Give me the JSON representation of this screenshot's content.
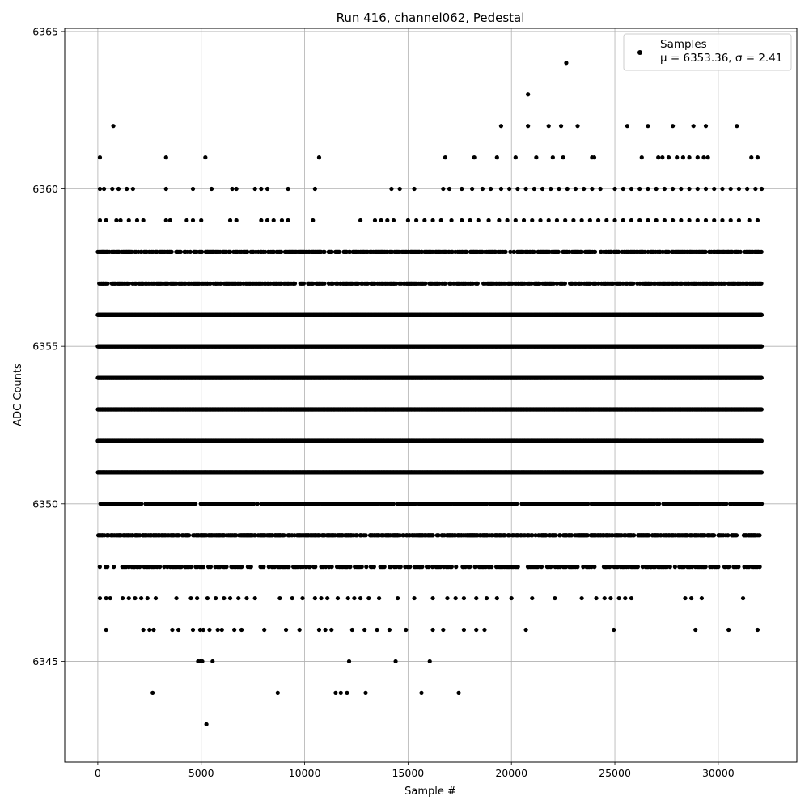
{
  "chart_data": {
    "type": "scatter",
    "title": "Run 416, channel062, Pedestal",
    "xlabel": "Sample #",
    "ylabel": "ADC Counts",
    "xlim": [
      -1600,
      33800
    ],
    "ylim": [
      6341.8,
      6365.1
    ],
    "xticks": [
      0,
      5000,
      10000,
      15000,
      20000,
      25000,
      30000
    ],
    "xtick_labels": [
      "0",
      "5000",
      "10000",
      "15000",
      "20000",
      "25000",
      "30000"
    ],
    "yticks": [
      6345,
      6350,
      6355,
      6360,
      6365
    ],
    "ytick_labels": [
      "6345",
      "6350",
      "6355",
      "6360",
      "6365"
    ],
    "grid": true,
    "legend_position": "top-right",
    "series": [
      {
        "name": "Samples",
        "legend_stats": "μ = 6353.36, σ = 2.41",
        "color": "#000000",
        "marker": "circle",
        "levels": [
          {
            "y": 6348,
            "x": [
              0,
              32100
            ],
            "density": "medium"
          },
          {
            "y": 6349,
            "x": [
              0,
              32100
            ],
            "density": "high"
          },
          {
            "y": 6350,
            "x": [
              100,
              32100
            ],
            "density": "high"
          },
          {
            "y": 6351,
            "x": [
              0,
              32100
            ],
            "density": "dense"
          },
          {
            "y": 6352,
            "x": [
              0,
              32100
            ],
            "density": "dense"
          },
          {
            "y": 6353,
            "x": [
              0,
              32100
            ],
            "density": "dense"
          },
          {
            "y": 6354,
            "x": [
              0,
              32100
            ],
            "density": "dense"
          },
          {
            "y": 6355,
            "x": [
              0,
              32100
            ],
            "density": "dense"
          },
          {
            "y": 6356,
            "x": [
              0,
              32100
            ],
            "density": "dense"
          },
          {
            "y": 6357,
            "x": [
              0,
              32100
            ],
            "density": "high"
          },
          {
            "y": 6358,
            "x": [
              0,
              32100
            ],
            "density": "high"
          }
        ],
        "points": [
          [
            2650,
            6344
          ],
          [
            8700,
            6344
          ],
          [
            11500,
            6344
          ],
          [
            11750,
            6344
          ],
          [
            12050,
            6344
          ],
          [
            12950,
            6344
          ],
          [
            15650,
            6344
          ],
          [
            17450,
            6344
          ],
          [
            5250,
            6343
          ],
          [
            4850,
            6345
          ],
          [
            4950,
            6345
          ],
          [
            5050,
            6345
          ],
          [
            5550,
            6345
          ],
          [
            12150,
            6345
          ],
          [
            14400,
            6345
          ],
          [
            16050,
            6345
          ],
          [
            400,
            6346
          ],
          [
            2200,
            6346
          ],
          [
            2500,
            6346
          ],
          [
            2700,
            6346
          ],
          [
            3600,
            6346
          ],
          [
            3900,
            6346
          ],
          [
            4600,
            6346
          ],
          [
            4950,
            6346
          ],
          [
            5100,
            6346
          ],
          [
            5400,
            6346
          ],
          [
            5800,
            6346
          ],
          [
            6000,
            6346
          ],
          [
            6600,
            6346
          ],
          [
            6950,
            6346
          ],
          [
            8050,
            6346
          ],
          [
            9100,
            6346
          ],
          [
            9750,
            6346
          ],
          [
            10700,
            6346
          ],
          [
            11000,
            6346
          ],
          [
            11300,
            6346
          ],
          [
            12300,
            6346
          ],
          [
            12900,
            6346
          ],
          [
            13500,
            6346
          ],
          [
            14100,
            6346
          ],
          [
            14900,
            6346
          ],
          [
            16200,
            6346
          ],
          [
            16700,
            6346
          ],
          [
            17700,
            6346
          ],
          [
            18300,
            6346
          ],
          [
            18700,
            6346
          ],
          [
            20700,
            6346
          ],
          [
            24950,
            6346
          ],
          [
            28900,
            6346
          ],
          [
            30500,
            6346
          ],
          [
            31900,
            6346
          ],
          [
            100,
            6347
          ],
          [
            400,
            6347
          ],
          [
            600,
            6347
          ],
          [
            1200,
            6347
          ],
          [
            1500,
            6347
          ],
          [
            1800,
            6347
          ],
          [
            2100,
            6347
          ],
          [
            2400,
            6347
          ],
          [
            2800,
            6347
          ],
          [
            3800,
            6347
          ],
          [
            4500,
            6347
          ],
          [
            4800,
            6347
          ],
          [
            5300,
            6347
          ],
          [
            5700,
            6347
          ],
          [
            6100,
            6347
          ],
          [
            6400,
            6347
          ],
          [
            6800,
            6347
          ],
          [
            7200,
            6347
          ],
          [
            7600,
            6347
          ],
          [
            8800,
            6347
          ],
          [
            9400,
            6347
          ],
          [
            9900,
            6347
          ],
          [
            10500,
            6347
          ],
          [
            10800,
            6347
          ],
          [
            11100,
            6347
          ],
          [
            11600,
            6347
          ],
          [
            12100,
            6347
          ],
          [
            12400,
            6347
          ],
          [
            12700,
            6347
          ],
          [
            13100,
            6347
          ],
          [
            13600,
            6347
          ],
          [
            14500,
            6347
          ],
          [
            15300,
            6347
          ],
          [
            16200,
            6347
          ],
          [
            16900,
            6347
          ],
          [
            17300,
            6347
          ],
          [
            17700,
            6347
          ],
          [
            18300,
            6347
          ],
          [
            18800,
            6347
          ],
          [
            19300,
            6347
          ],
          [
            20000,
            6347
          ],
          [
            21000,
            6347
          ],
          [
            22100,
            6347
          ],
          [
            23400,
            6347
          ],
          [
            24100,
            6347
          ],
          [
            24500,
            6347
          ],
          [
            24800,
            6347
          ],
          [
            25200,
            6347
          ],
          [
            25500,
            6347
          ],
          [
            25800,
            6347
          ],
          [
            28400,
            6347
          ],
          [
            28700,
            6347
          ],
          [
            29200,
            6347
          ],
          [
            31200,
            6347
          ],
          [
            100,
            6359
          ],
          [
            400,
            6359
          ],
          [
            900,
            6359
          ],
          [
            1100,
            6359
          ],
          [
            1500,
            6359
          ],
          [
            1900,
            6359
          ],
          [
            2200,
            6359
          ],
          [
            3300,
            6359
          ],
          [
            3500,
            6359
          ],
          [
            4300,
            6359
          ],
          [
            4600,
            6359
          ],
          [
            5000,
            6359
          ],
          [
            6400,
            6359
          ],
          [
            6700,
            6359
          ],
          [
            7900,
            6359
          ],
          [
            8200,
            6359
          ],
          [
            8500,
            6359
          ],
          [
            8900,
            6359
          ],
          [
            9200,
            6359
          ],
          [
            10400,
            6359
          ],
          [
            12700,
            6359
          ],
          [
            13400,
            6359
          ],
          [
            13700,
            6359
          ],
          [
            14000,
            6359
          ],
          [
            14300,
            6359
          ],
          [
            15000,
            6359
          ],
          [
            15400,
            6359
          ],
          [
            15800,
            6359
          ],
          [
            16200,
            6359
          ],
          [
            16600,
            6359
          ],
          [
            17100,
            6359
          ],
          [
            17600,
            6359
          ],
          [
            18000,
            6359
          ],
          [
            18400,
            6359
          ],
          [
            18900,
            6359
          ],
          [
            19400,
            6359
          ],
          [
            19800,
            6359
          ],
          [
            20200,
            6359
          ],
          [
            20600,
            6359
          ],
          [
            21000,
            6359
          ],
          [
            21400,
            6359
          ],
          [
            21800,
            6359
          ],
          [
            22200,
            6359
          ],
          [
            22600,
            6359
          ],
          [
            23000,
            6359
          ],
          [
            23400,
            6359
          ],
          [
            23800,
            6359
          ],
          [
            24200,
            6359
          ],
          [
            24600,
            6359
          ],
          [
            25000,
            6359
          ],
          [
            25400,
            6359
          ],
          [
            25800,
            6359
          ],
          [
            26200,
            6359
          ],
          [
            26600,
            6359
          ],
          [
            27000,
            6359
          ],
          [
            27400,
            6359
          ],
          [
            27800,
            6359
          ],
          [
            28200,
            6359
          ],
          [
            28600,
            6359
          ],
          [
            29000,
            6359
          ],
          [
            29400,
            6359
          ],
          [
            29800,
            6359
          ],
          [
            30200,
            6359
          ],
          [
            30600,
            6359
          ],
          [
            31000,
            6359
          ],
          [
            31500,
            6359
          ],
          [
            31900,
            6359
          ],
          [
            100,
            6360
          ],
          [
            300,
            6360
          ],
          [
            700,
            6360
          ],
          [
            1000,
            6360
          ],
          [
            1400,
            6360
          ],
          [
            1700,
            6360
          ],
          [
            3300,
            6360
          ],
          [
            4600,
            6360
          ],
          [
            5500,
            6360
          ],
          [
            6500,
            6360
          ],
          [
            6700,
            6360
          ],
          [
            7600,
            6360
          ],
          [
            7900,
            6360
          ],
          [
            8200,
            6360
          ],
          [
            9200,
            6360
          ],
          [
            10500,
            6360
          ],
          [
            14200,
            6360
          ],
          [
            14600,
            6360
          ],
          [
            15300,
            6360
          ],
          [
            16700,
            6360
          ],
          [
            17000,
            6360
          ],
          [
            17600,
            6360
          ],
          [
            18100,
            6360
          ],
          [
            18600,
            6360
          ],
          [
            19000,
            6360
          ],
          [
            19500,
            6360
          ],
          [
            19900,
            6360
          ],
          [
            20300,
            6360
          ],
          [
            20700,
            6360
          ],
          [
            21100,
            6360
          ],
          [
            21500,
            6360
          ],
          [
            21900,
            6360
          ],
          [
            22300,
            6360
          ],
          [
            22700,
            6360
          ],
          [
            23100,
            6360
          ],
          [
            23500,
            6360
          ],
          [
            23900,
            6360
          ],
          [
            24300,
            6360
          ],
          [
            25000,
            6360
          ],
          [
            25400,
            6360
          ],
          [
            25800,
            6360
          ],
          [
            26200,
            6360
          ],
          [
            26600,
            6360
          ],
          [
            27000,
            6360
          ],
          [
            27400,
            6360
          ],
          [
            27800,
            6360
          ],
          [
            28200,
            6360
          ],
          [
            28600,
            6360
          ],
          [
            29000,
            6360
          ],
          [
            29400,
            6360
          ],
          [
            29800,
            6360
          ],
          [
            30200,
            6360
          ],
          [
            30600,
            6360
          ],
          [
            31000,
            6360
          ],
          [
            31400,
            6360
          ],
          [
            31800,
            6360
          ],
          [
            32100,
            6360
          ],
          [
            100,
            6361
          ],
          [
            3300,
            6361
          ],
          [
            5200,
            6361
          ],
          [
            10700,
            6361
          ],
          [
            16800,
            6361
          ],
          [
            18200,
            6361
          ],
          [
            19300,
            6361
          ],
          [
            20200,
            6361
          ],
          [
            21200,
            6361
          ],
          [
            22000,
            6361
          ],
          [
            22500,
            6361
          ],
          [
            23900,
            6361
          ],
          [
            24000,
            6361
          ],
          [
            26300,
            6361
          ],
          [
            27100,
            6361
          ],
          [
            27300,
            6361
          ],
          [
            27600,
            6361
          ],
          [
            28000,
            6361
          ],
          [
            28300,
            6361
          ],
          [
            28600,
            6361
          ],
          [
            29000,
            6361
          ],
          [
            29300,
            6361
          ],
          [
            29500,
            6361
          ],
          [
            31600,
            6361
          ],
          [
            31900,
            6361
          ],
          [
            750,
            6362
          ],
          [
            19500,
            6362
          ],
          [
            20800,
            6362
          ],
          [
            21800,
            6362
          ],
          [
            22400,
            6362
          ],
          [
            23200,
            6362
          ],
          [
            25600,
            6362
          ],
          [
            26600,
            6362
          ],
          [
            27800,
            6362
          ],
          [
            28800,
            6362
          ],
          [
            29400,
            6362
          ],
          [
            30900,
            6362
          ],
          [
            20800,
            6363
          ],
          [
            22650,
            6364
          ]
        ]
      }
    ]
  }
}
